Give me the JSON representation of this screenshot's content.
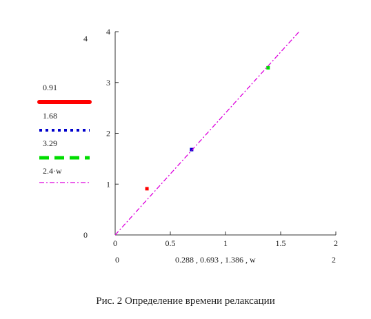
{
  "chart_data": {
    "type": "scatter",
    "xlim": [
      0,
      2
    ],
    "ylim": [
      0,
      4
    ],
    "x_ticks": [
      "0",
      "0.5",
      "1",
      "1.5",
      "2"
    ],
    "y_ticks": [
      "1",
      "2",
      "3",
      "4"
    ],
    "x_bound_min": "0",
    "x_bound_max": "2",
    "y_bound_max": "4",
    "y_bound_min": "0",
    "xlabel": "0.288 , 0.693 , 1.386 , w",
    "grid": false,
    "legend_position": "left",
    "series": [
      {
        "name": "0.91",
        "style": "points",
        "color": "#ff0000",
        "x": [
          0.288
        ],
        "y": [
          0.91
        ]
      },
      {
        "name": "1.68",
        "style": "points",
        "color": "#0000cc",
        "x": [
          0.693
        ],
        "y": [
          1.68
        ]
      },
      {
        "name": "3.29",
        "style": "points",
        "color": "#00dd00",
        "x": [
          1.386
        ],
        "y": [
          3.29
        ]
      },
      {
        "name": "2.4·w",
        "style": "dash-dot-line",
        "color": "#dd00dd",
        "slope": 2.4,
        "x": [
          0,
          1.667
        ],
        "y": [
          0,
          4
        ]
      }
    ]
  },
  "caption": "Рис. 2 Определение времени релаксации"
}
